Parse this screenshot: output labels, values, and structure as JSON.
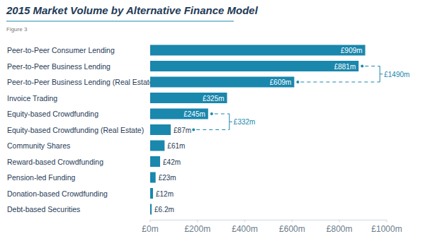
{
  "chart_data": {
    "type": "bar",
    "orientation": "horizontal",
    "title": "2015 Market Volume by Alternative Finance Model",
    "subtitle": "Figure 3",
    "categories": [
      "Peer-to-Peer Consumer Lending",
      "Peer-to-Peer Business Lending",
      "Peer-to-Peer Business Lending (Real Estate)",
      "Invoice Trading",
      "Equity-based Crowdfunding",
      "Equity-based Crowdfunding (Real Estate)",
      "Community Shares",
      "Reward-based Crowdfunding",
      "Pension-led Funding",
      "Donation-based Crowdfunding",
      "Debt-based Securities"
    ],
    "values": [
      909,
      881,
      609,
      325,
      245,
      87,
      61,
      42,
      23,
      12,
      6.2
    ],
    "value_labels": [
      "£909m",
      "£881m",
      "£609m",
      "£325m",
      "£245m",
      "£87m",
      "£61m",
      "£42m",
      "£23m",
      "£12m",
      "£6.2m"
    ],
    "data_labels": true,
    "color": "#1a87ad",
    "grid": false,
    "xlim": [
      0,
      1000
    ],
    "xticks": [
      {
        "value": 0,
        "label": "£0m"
      },
      {
        "value": 200,
        "label": "£200m"
      },
      {
        "value": 400,
        "label": "£400m"
      },
      {
        "value": 600,
        "label": "£600m"
      },
      {
        "value": 800,
        "label": "£800m"
      },
      {
        "value": 1000,
        "label": "£1000m"
      }
    ],
    "annotations": [
      {
        "text": "£1490m",
        "categories": [
          "Peer-to-Peer Business Lending",
          "Peer-to-Peer Business Lending (Real Estate)"
        ]
      },
      {
        "text": "£332m",
        "categories": [
          "Equity-based Crowdfunding",
          "Equity-based Crowdfunding (Real Estate)"
        ]
      }
    ]
  }
}
